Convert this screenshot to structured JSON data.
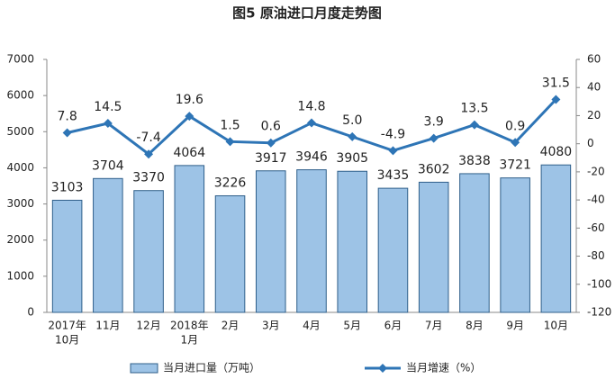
{
  "chart_data": {
    "type": "bar-line",
    "title": "图5 原油进口月度走势图",
    "categories": [
      [
        "2017年",
        "10月"
      ],
      "11月",
      "12月",
      [
        "2018年",
        "1月"
      ],
      "2月",
      "3月",
      "4月",
      "5月",
      "6月",
      "7月",
      "8月",
      "9月",
      "10月"
    ],
    "series": [
      {
        "name": "当月进口量（万吨）",
        "type": "bar",
        "color": "#9dc3e6",
        "values": [
          3103,
          3704,
          3370,
          4064,
          3226,
          3917,
          3946,
          3905,
          3435,
          3602,
          3838,
          3721,
          4080
        ]
      },
      {
        "name": "当月增速（%）",
        "type": "line",
        "axis": "y2",
        "color": "#2e75b6",
        "values": [
          7.8,
          14.5,
          -7.4,
          19.6,
          1.5,
          0.6,
          14.8,
          5.0,
          -4.9,
          3.9,
          13.5,
          0.9,
          31.5
        ],
        "value_labels": [
          "7.8",
          "14.5",
          "-7.4",
          "19.6",
          "1.5",
          "0.6",
          "14.8",
          "5.0",
          "-4.9",
          "3.9",
          "13.5",
          "0.9",
          "31.5"
        ]
      }
    ],
    "ylim": [
      0,
      7000
    ],
    "yticks": [
      0,
      1000,
      2000,
      3000,
      4000,
      5000,
      6000,
      7000
    ],
    "y2lim": [
      -120,
      60
    ],
    "y2ticks": [
      -120,
      -100,
      -80,
      -60,
      -40,
      -20,
      0,
      20,
      40,
      60
    ]
  }
}
